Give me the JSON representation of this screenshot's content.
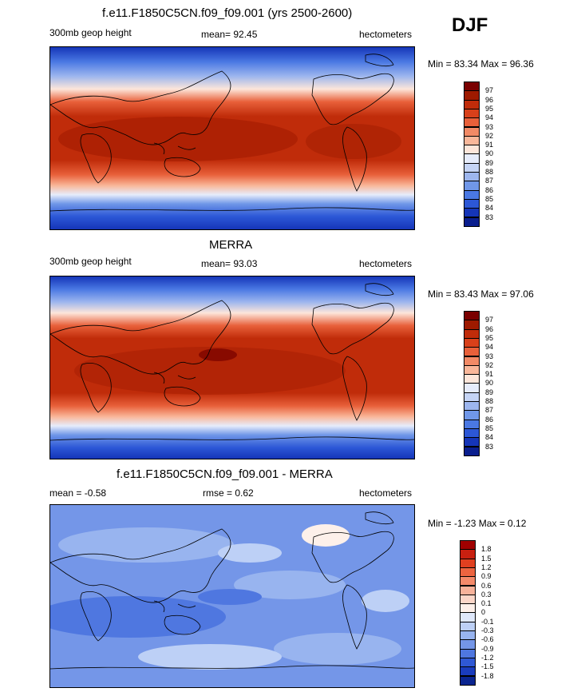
{
  "season": "DJF",
  "panels": [
    {
      "title": "f.e11.F1850C5CN.f09_f09.001 (yrs 2500-2600)",
      "left_label": "300mb geop height",
      "mean_label": "mean=  92.45",
      "units": "hectometers",
      "minmax": "Min =  83.34 Max =  96.36",
      "colorbar_labels": [
        "97",
        "96",
        "95",
        "94",
        "93",
        "92",
        "91",
        "90",
        "89",
        "88",
        "87",
        "86",
        "85",
        "84",
        "83"
      ]
    },
    {
      "title": "MERRA",
      "left_label": "300mb geop height",
      "mean_label": "mean=  93.03",
      "units": "hectometers",
      "minmax": "Min =  83.43 Max =  97.06",
      "colorbar_labels": [
        "97",
        "96",
        "95",
        "94",
        "93",
        "92",
        "91",
        "90",
        "89",
        "88",
        "87",
        "86",
        "85",
        "84",
        "83"
      ]
    },
    {
      "title": "f.e11.F1850C5CN.f09_f09.001 - MERRA",
      "left_label": "mean =  -0.58",
      "mean_label": "rmse =   0.62",
      "units": "hectometers",
      "minmax": "Min =  -1.23 Max =   0.12",
      "colorbar_labels": [
        "1.8",
        "1.5",
        "1.2",
        "0.9",
        "0.6",
        "0.3",
        "0.1",
        "0",
        "-0.1",
        "-0.3",
        "-0.6",
        "-0.9",
        "-1.2",
        "-1.5",
        "-1.8"
      ]
    }
  ],
  "colors": {
    "abs_scale": [
      "#7a0000",
      "#9e1a00",
      "#c02c0a",
      "#d8401a",
      "#e8603a",
      "#f28a66",
      "#f9b79a",
      "#fde6da",
      "#e6ecfb",
      "#c5d4f5",
      "#9db6ee",
      "#7097e8",
      "#4a78e3",
      "#2c57d6",
      "#1535b8",
      "#0a1e8e"
    ],
    "diff_scale": [
      "#a00000",
      "#c82010",
      "#e04020",
      "#ec6440",
      "#f48a6a",
      "#f7b29a",
      "#fbd6c8",
      "#fdf0ea",
      "#dfe8fb",
      "#bdd0f6",
      "#98b4ef",
      "#7496e8",
      "#4f77e0",
      "#2f58d4",
      "#1a3cbd",
      "#0a2590"
    ]
  }
}
